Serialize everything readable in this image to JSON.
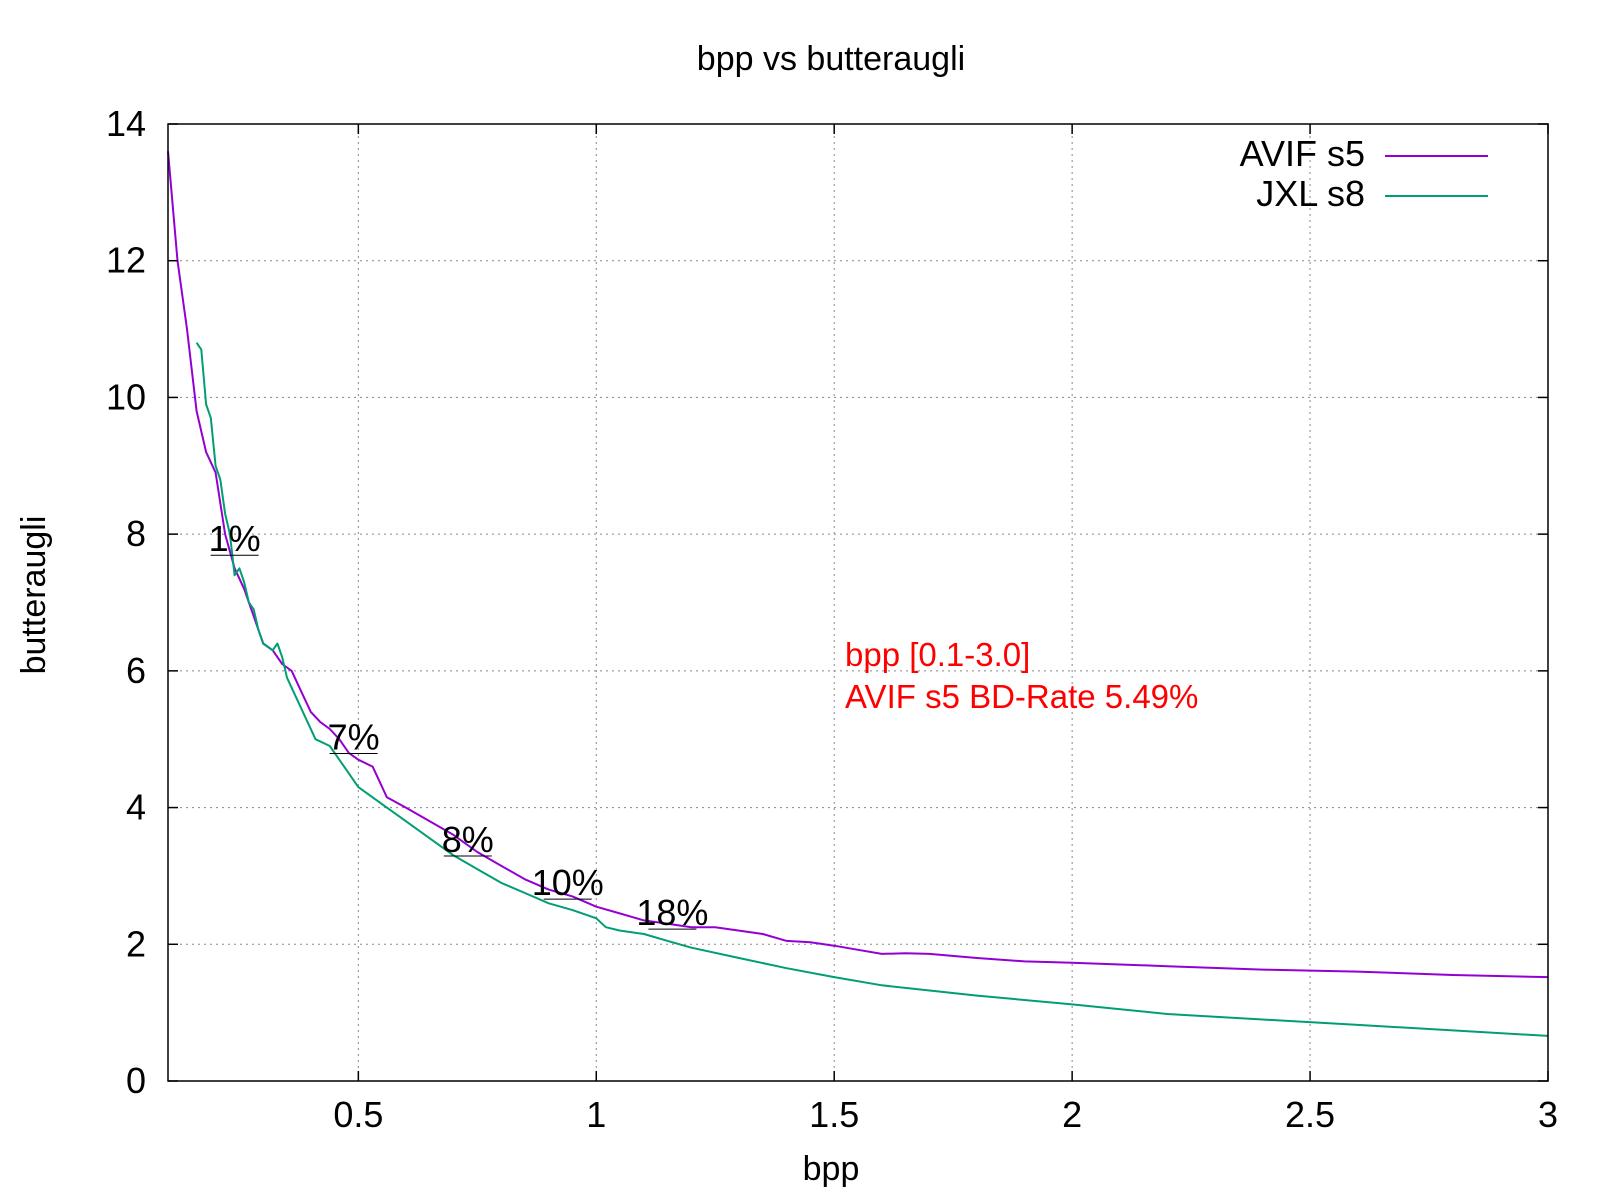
{
  "chart_data": {
    "type": "line",
    "title": "bpp vs butteraugli",
    "xlabel": "bpp",
    "ylabel": "butteraugli",
    "xlim": [
      0.1,
      3.0
    ],
    "ylim": [
      0,
      14
    ],
    "xticks": [
      0.5,
      1,
      1.5,
      2,
      2.5,
      3
    ],
    "xtick_labels": [
      "0.5",
      "1",
      "1.5",
      "2",
      "2.5",
      "3"
    ],
    "yticks": [
      0,
      2,
      4,
      6,
      8,
      10,
      12,
      14
    ],
    "ytick_labels": [
      "0",
      "2",
      "4",
      "6",
      "8",
      "10",
      "12",
      "14"
    ],
    "grid": true,
    "legend_position": "top-right",
    "series": [
      {
        "name": "AVIF s5",
        "color": "#9400d3",
        "points": [
          [
            0.1,
            13.6
          ],
          [
            0.12,
            12.0
          ],
          [
            0.14,
            11.0
          ],
          [
            0.16,
            9.8
          ],
          [
            0.18,
            9.2
          ],
          [
            0.2,
            8.9
          ],
          [
            0.22,
            8.0
          ],
          [
            0.24,
            7.5
          ],
          [
            0.26,
            7.2
          ],
          [
            0.28,
            6.8
          ],
          [
            0.3,
            6.4
          ],
          [
            0.32,
            6.3
          ],
          [
            0.34,
            6.1
          ],
          [
            0.36,
            6.0
          ],
          [
            0.38,
            5.7
          ],
          [
            0.4,
            5.4
          ],
          [
            0.42,
            5.25
          ],
          [
            0.44,
            5.15
          ],
          [
            0.46,
            5.0
          ],
          [
            0.48,
            4.8
          ],
          [
            0.5,
            4.7
          ],
          [
            0.53,
            4.6
          ],
          [
            0.56,
            4.15
          ],
          [
            0.6,
            4.0
          ],
          [
            0.65,
            3.8
          ],
          [
            0.7,
            3.6
          ],
          [
            0.75,
            3.35
          ],
          [
            0.8,
            3.15
          ],
          [
            0.85,
            2.95
          ],
          [
            0.9,
            2.8
          ],
          [
            0.95,
            2.7
          ],
          [
            1.0,
            2.55
          ],
          [
            1.05,
            2.45
          ],
          [
            1.1,
            2.35
          ],
          [
            1.15,
            2.3
          ],
          [
            1.2,
            2.25
          ],
          [
            1.25,
            2.25
          ],
          [
            1.3,
            2.2
          ],
          [
            1.35,
            2.15
          ],
          [
            1.4,
            2.05
          ],
          [
            1.45,
            2.03
          ],
          [
            1.5,
            1.98
          ],
          [
            1.55,
            1.92
          ],
          [
            1.6,
            1.86
          ],
          [
            1.65,
            1.87
          ],
          [
            1.7,
            1.86
          ],
          [
            1.8,
            1.8
          ],
          [
            1.9,
            1.75
          ],
          [
            2.0,
            1.73
          ],
          [
            2.2,
            1.68
          ],
          [
            2.4,
            1.63
          ],
          [
            2.6,
            1.6
          ],
          [
            2.8,
            1.55
          ],
          [
            3.0,
            1.52
          ]
        ]
      },
      {
        "name": "JXL s8",
        "color": "#009e73",
        "points": [
          [
            0.16,
            10.8
          ],
          [
            0.17,
            10.7
          ],
          [
            0.18,
            9.9
          ],
          [
            0.19,
            9.7
          ],
          [
            0.2,
            9.0
          ],
          [
            0.21,
            8.8
          ],
          [
            0.22,
            8.3
          ],
          [
            0.23,
            8.0
          ],
          [
            0.24,
            7.4
          ],
          [
            0.25,
            7.5
          ],
          [
            0.26,
            7.3
          ],
          [
            0.27,
            7.0
          ],
          [
            0.28,
            6.9
          ],
          [
            0.29,
            6.6
          ],
          [
            0.3,
            6.4
          ],
          [
            0.32,
            6.3
          ],
          [
            0.33,
            6.4
          ],
          [
            0.34,
            6.2
          ],
          [
            0.35,
            5.9
          ],
          [
            0.37,
            5.6
          ],
          [
            0.39,
            5.3
          ],
          [
            0.41,
            5.0
          ],
          [
            0.44,
            4.9
          ],
          [
            0.47,
            4.6
          ],
          [
            0.5,
            4.3
          ],
          [
            0.55,
            4.05
          ],
          [
            0.6,
            3.8
          ],
          [
            0.65,
            3.55
          ],
          [
            0.7,
            3.3
          ],
          [
            0.75,
            3.1
          ],
          [
            0.8,
            2.9
          ],
          [
            0.85,
            2.75
          ],
          [
            0.9,
            2.6
          ],
          [
            0.95,
            2.5
          ],
          [
            1.0,
            2.38
          ],
          [
            1.02,
            2.25
          ],
          [
            1.05,
            2.2
          ],
          [
            1.1,
            2.15
          ],
          [
            1.15,
            2.05
          ],
          [
            1.2,
            1.95
          ],
          [
            1.3,
            1.8
          ],
          [
            1.4,
            1.65
          ],
          [
            1.5,
            1.52
          ],
          [
            1.6,
            1.4
          ],
          [
            1.8,
            1.25
          ],
          [
            2.0,
            1.12
          ],
          [
            2.2,
            0.98
          ],
          [
            2.4,
            0.9
          ],
          [
            2.6,
            0.82
          ],
          [
            2.8,
            0.74
          ],
          [
            3.0,
            0.66
          ]
        ]
      }
    ],
    "annotations": [
      {
        "text": "1%",
        "x": 0.24,
        "y": 7.75
      },
      {
        "text": "7%",
        "x": 0.49,
        "y": 4.85
      },
      {
        "text": "8%",
        "x": 0.73,
        "y": 3.35
      },
      {
        "text": "10%",
        "x": 0.94,
        "y": 2.72
      },
      {
        "text": "18%",
        "x": 1.16,
        "y": 2.28
      }
    ],
    "info_lines": [
      "bpp [0.1-3.0]",
      "AVIF s5 BD-Rate 5.49%"
    ]
  }
}
